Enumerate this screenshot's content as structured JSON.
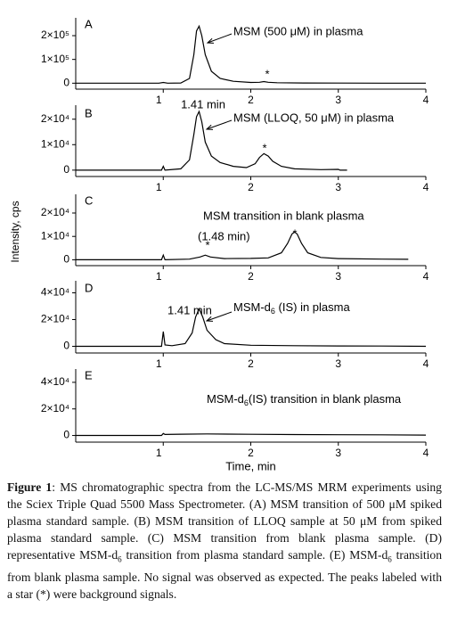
{
  "chart_data": [
    {
      "type": "line",
      "xlim": [
        0,
        4
      ],
      "xticks": [
        1,
        2,
        3,
        4
      ],
      "ylim": [
        -25000,
        275000
      ],
      "yticks": [
        0,
        {
          "value": 100000,
          "label": "1×10⁵"
        },
        {
          "value": 200000,
          "label": "2×10⁵"
        }
      ],
      "annotations": [
        "A",
        "MSM (500 μM) in plasma",
        "*"
      ],
      "series": [
        {
          "color": "#000000",
          "x": [
            0,
            0.5,
            0.95,
            1.0,
            1.05,
            1.2,
            1.3,
            1.35,
            1.38,
            1.41,
            1.44,
            1.48,
            1.55,
            1.65,
            1.8,
            2.0,
            2.1,
            2.15,
            2.2,
            2.3,
            2.6,
            3.0,
            3.5,
            4
          ],
          "values": [
            0,
            0,
            0,
            3000,
            0,
            1000,
            20000,
            120000,
            220000,
            240000,
            200000,
            120000,
            50000,
            20000,
            8000,
            3000,
            4000,
            7000,
            4000,
            2000,
            1000,
            500,
            0,
            0
          ]
        }
      ]
    },
    {
      "type": "line",
      "xlim": [
        0,
        4
      ],
      "xticks": [
        1,
        2,
        3,
        4
      ],
      "ylim": [
        -2500,
        25500
      ],
      "yticks": [
        0,
        {
          "value": 10000,
          "label": "1×10⁴"
        },
        {
          "value": 20000,
          "label": "2×10⁴"
        }
      ],
      "annotations": [
        "B",
        "1.41 min",
        "MSM (LLOQ, 50 μM) in plasma",
        "*"
      ],
      "series": [
        {
          "color": "#000000",
          "x": [
            0,
            0.5,
            0.98,
            1.0,
            1.02,
            1.2,
            1.3,
            1.35,
            1.38,
            1.41,
            1.44,
            1.48,
            1.55,
            1.65,
            1.8,
            1.95,
            2.05,
            2.1,
            2.15,
            2.2,
            2.25,
            2.35,
            2.5,
            2.8,
            3.0,
            3.02,
            3.1
          ],
          "values": [
            0,
            0,
            0,
            1500,
            0,
            500,
            4000,
            14000,
            21000,
            23000,
            19000,
            11000,
            5500,
            3000,
            1500,
            1000,
            2500,
            5000,
            6500,
            5500,
            3500,
            1500,
            500,
            200,
            300,
            0,
            0
          ]
        }
      ]
    },
    {
      "type": "line",
      "xlim": [
        0,
        4
      ],
      "xticks": [
        1,
        2,
        3,
        4
      ],
      "ylim": [
        -2500,
        28000
      ],
      "yticks": [
        0,
        {
          "value": 10000,
          "label": "1×10⁴"
        },
        {
          "value": 20000,
          "label": "2×10⁴"
        }
      ],
      "annotations": [
        "C",
        "MSM transition in blank plasma",
        "(1.48 min)",
        "*",
        "*"
      ],
      "series": [
        {
          "color": "#000000",
          "x": [
            0,
            0.5,
            0.98,
            1.0,
            1.02,
            1.3,
            1.42,
            1.48,
            1.54,
            1.7,
            2.0,
            2.2,
            2.35,
            2.42,
            2.47,
            2.5,
            2.53,
            2.58,
            2.65,
            2.8,
            3.0,
            3.5,
            3.8
          ],
          "values": [
            0,
            0,
            0,
            2000,
            0,
            300,
            1200,
            2000,
            1200,
            500,
            600,
            800,
            3000,
            7000,
            11000,
            12000,
            11000,
            7000,
            3000,
            1000,
            500,
            300,
            200
          ]
        }
      ]
    },
    {
      "type": "line",
      "xlim": [
        0,
        4
      ],
      "xticks": [
        1,
        2,
        3,
        4
      ],
      "ylim": [
        -5000,
        49000
      ],
      "yticks": [
        0,
        {
          "value": 20000,
          "label": "2×10⁴"
        },
        {
          "value": 40000,
          "label": "4×10⁴"
        }
      ],
      "annotations": [
        "D",
        "1.41 min",
        [
          "MSM-d",
          "6",
          " (IS) in plasma"
        ]
      ],
      "series": [
        {
          "color": "#000000",
          "x": [
            0,
            0.5,
            0.98,
            1.0,
            1.02,
            1.1,
            1.25,
            1.33,
            1.37,
            1.41,
            1.45,
            1.5,
            1.6,
            1.7,
            2.0,
            2.5,
            3.0,
            3.5,
            4
          ],
          "values": [
            0,
            0,
            0,
            11000,
            1000,
            500,
            2000,
            10000,
            22000,
            28000,
            22000,
            12000,
            5000,
            2000,
            800,
            500,
            300,
            200,
            0
          ]
        }
      ]
    },
    {
      "type": "line",
      "xlim": [
        0,
        4
      ],
      "xticks": [
        1,
        2,
        3,
        4
      ],
      "ylim": [
        -5000,
        50000
      ],
      "yticks": [
        0,
        {
          "value": 20000,
          "label": "2×10⁴"
        },
        {
          "value": 40000,
          "label": "4×10⁴"
        }
      ],
      "annotations": [
        "E",
        [
          "MSM-d",
          "6",
          "(IS) transition in blank plasma"
        ]
      ],
      "xlabel": "Time, min",
      "series": [
        {
          "color": "#000000",
          "x": [
            0,
            0.5,
            0.98,
            1.0,
            1.02,
            1.2,
            1.5,
            2.0,
            2.5,
            3.0,
            3.5,
            4
          ],
          "values": [
            0,
            0,
            0,
            1500,
            800,
            1000,
            1200,
            900,
            700,
            600,
            500,
            300
          ]
        }
      ]
    }
  ],
  "ylabel": "Intensity, cps",
  "caption": {
    "label": "Figure 1",
    "parts": [
      ": MS chromatographic spectra from the LC-MS/MS MRM experiments using the Sciex Triple Quad 5500 Mass Spectrometer. (A) MSM transition of 500 μM spiked plasma standard sample. (B) MSM transition of LLOQ sample at 50 μM from spiked plasma standard sample. (C) MSM transition from blank plasma sample. (D) representative MSM-d",
      "6",
      " transition from plasma standard sample. (E) MSM-d",
      "6",
      " transition from blank plasma sample. No signal was observed as expected. The peaks labeled with a star (*) were background signals."
    ]
  }
}
